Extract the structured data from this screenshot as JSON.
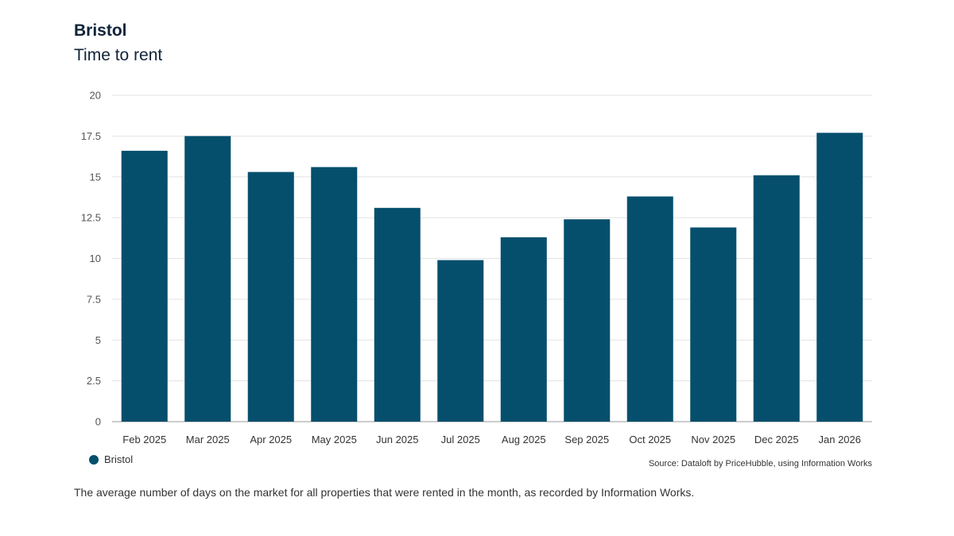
{
  "header": {
    "title": "Bristol",
    "subtitle": "Time to rent"
  },
  "colors": {
    "bar": "#054f6d",
    "grid": "#e3e3e3",
    "axis": "#999999"
  },
  "chart_data": {
    "type": "bar",
    "categories": [
      "Feb 2025",
      "Mar 2025",
      "Apr 2025",
      "May 2025",
      "Jun 2025",
      "Jul 2025",
      "Aug 2025",
      "Sep 2025",
      "Oct 2025",
      "Nov 2025",
      "Dec 2025",
      "Jan 2026"
    ],
    "series": [
      {
        "name": "Bristol",
        "values": [
          16.6,
          17.5,
          15.3,
          15.6,
          13.1,
          9.9,
          11.3,
          12.4,
          13.8,
          11.9,
          15.1,
          17.7
        ]
      }
    ],
    "ylim": [
      0,
      20
    ],
    "yticks": [
      0,
      2.5,
      5,
      7.5,
      10,
      12.5,
      15,
      17.5,
      20
    ],
    "ytick_labels": [
      "0",
      "2.5",
      "5",
      "7.5",
      "10",
      "12.5",
      "15",
      "17.5",
      "20"
    ],
    "grid": true,
    "legend_position": "bottom-left"
  },
  "legend": {
    "label": "Bristol"
  },
  "footer": {
    "source": "Source: Dataloft by PriceHubble, using Information Works",
    "caption": "The average number of days on the market for all properties that were rented in the month, as recorded by Information Works."
  }
}
